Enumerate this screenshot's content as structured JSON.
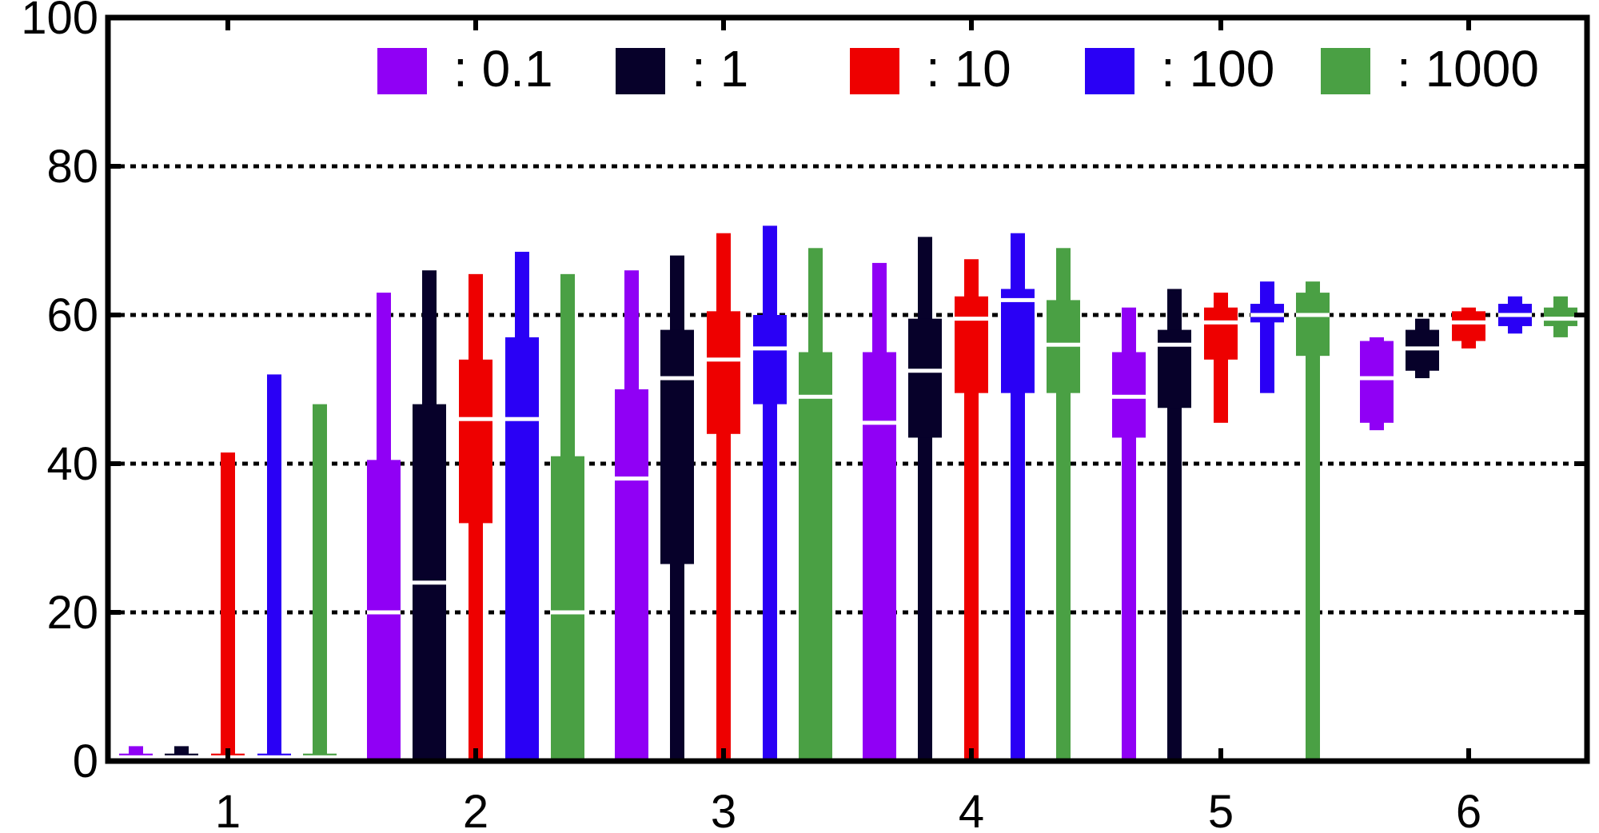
{
  "chart_data": {
    "type": "box",
    "categories": [
      "1",
      "2",
      "3",
      "4",
      "5",
      "6"
    ],
    "ylim": [
      0,
      100
    ],
    "yticks": [
      "0",
      "20",
      "40",
      "60",
      "80",
      "100"
    ],
    "grid": "horizontal dashed at 20, 40, 60, 80",
    "legend_position": "top",
    "series": [
      {
        "name": ": 0.1",
        "color": "#9000f5",
        "boxes": [
          {
            "min": 0,
            "q1": 0,
            "median": 0.5,
            "q3": 1,
            "max": 2
          },
          {
            "min": 0,
            "q1": 0,
            "median": 20,
            "q3": 40.5,
            "max": 63
          },
          {
            "min": 0,
            "q1": 0,
            "median": 38,
            "q3": 50,
            "max": 66
          },
          {
            "min": 0,
            "q1": 0,
            "median": 45.5,
            "q3": 55,
            "max": 67
          },
          {
            "min": 0,
            "q1": 43.5,
            "median": 49,
            "q3": 55,
            "max": 61
          },
          {
            "min": 44.5,
            "q1": 45.5,
            "median": 51.5,
            "q3": 56.5,
            "max": 57
          }
        ]
      },
      {
        "name": ": 1",
        "color": "#07012a",
        "boxes": [
          {
            "min": 0,
            "q1": 0,
            "median": 0.5,
            "q3": 1,
            "max": 2
          },
          {
            "min": 0,
            "q1": 0,
            "median": 24,
            "q3": 48,
            "max": 66
          },
          {
            "min": 0,
            "q1": 26.5,
            "median": 51.5,
            "q3": 58,
            "max": 68
          },
          {
            "min": 0,
            "q1": 43.5,
            "median": 52.5,
            "q3": 59.5,
            "max": 70.5
          },
          {
            "min": 0,
            "q1": 47.5,
            "median": 56,
            "q3": 58,
            "max": 63.5
          },
          {
            "min": 51.5,
            "q1": 52.5,
            "median": 55.5,
            "q3": 58,
            "max": 59.5
          }
        ]
      },
      {
        "name": ": 10",
        "color": "#ee0000",
        "boxes": [
          {
            "min": 0,
            "q1": 0,
            "median": 0.5,
            "q3": 1,
            "max": 41.5
          },
          {
            "min": 0,
            "q1": 32,
            "median": 46,
            "q3": 54,
            "max": 65.5
          },
          {
            "min": 0,
            "q1": 44,
            "median": 54,
            "q3": 60.5,
            "max": 71
          },
          {
            "min": 0,
            "q1": 49.5,
            "median": 59.5,
            "q3": 62.5,
            "max": 67.5
          },
          {
            "min": 45.5,
            "q1": 54,
            "median": 59,
            "q3": 61,
            "max": 63
          },
          {
            "min": 55.5,
            "q1": 56.5,
            "median": 59,
            "q3": 60.5,
            "max": 61
          }
        ]
      },
      {
        "name": ": 100",
        "color": "#2a00f5",
        "boxes": [
          {
            "min": 0,
            "q1": 0,
            "median": 0.5,
            "q3": 1,
            "max": 52
          },
          {
            "min": 0,
            "q1": 0,
            "median": 46,
            "q3": 57,
            "max": 68.5
          },
          {
            "min": 0,
            "q1": 48,
            "median": 55.5,
            "q3": 60,
            "max": 72
          },
          {
            "min": 0,
            "q1": 49.5,
            "median": 62,
            "q3": 63.5,
            "max": 71
          },
          {
            "min": 49.5,
            "q1": 59,
            "median": 60,
            "q3": 61.5,
            "max": 64.5
          },
          {
            "min": 57.5,
            "q1": 58.5,
            "median": 60,
            "q3": 61.5,
            "max": 62.5
          }
        ]
      },
      {
        "name": ": 1000",
        "color": "#4aa044",
        "boxes": [
          {
            "min": 0,
            "q1": 0,
            "median": 0.5,
            "q3": 1,
            "max": 48
          },
          {
            "min": 0,
            "q1": 0,
            "median": 20,
            "q3": 41,
            "max": 65.5
          },
          {
            "min": 0,
            "q1": 0,
            "median": 49,
            "q3": 55,
            "max": 69
          },
          {
            "min": 0,
            "q1": 49.5,
            "median": 56,
            "q3": 62,
            "max": 69
          },
          {
            "min": 0,
            "q1": 54.5,
            "median": 60,
            "q3": 63,
            "max": 64.5
          },
          {
            "min": 57,
            "q1": 58.5,
            "median": 59.5,
            "q3": 61,
            "max": 62.5
          }
        ]
      }
    ]
  }
}
